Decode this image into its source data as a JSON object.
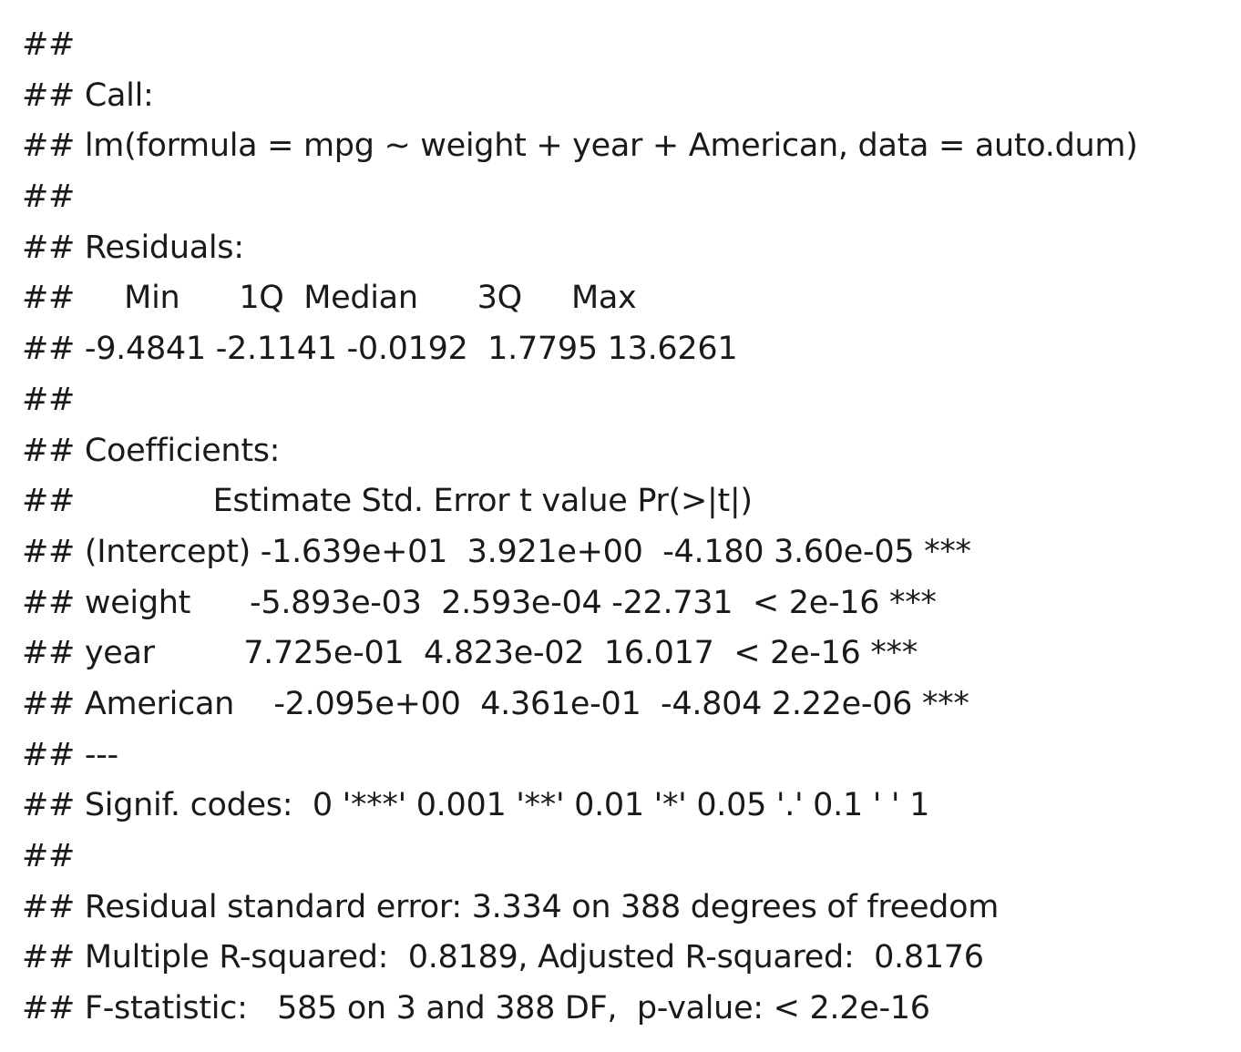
{
  "lines": [
    "##",
    "## Call:",
    "## lm(formula = mpg ~ weight + year + American, data = auto.dum)",
    "##",
    "## Residuals:",
    "##     Min      1Q  Median      3Q     Max",
    "## -9.4841 -2.1141 -0.0192  1.7795 13.6261",
    "##",
    "## Coefficients:",
    "##              Estimate Std. Error t value Pr(>|t|)",
    "## (Intercept) -1.639e+01  3.921e+00  -4.180 3.60e-05 ***",
    "## weight      -5.893e-03  2.593e-04 -22.731  < 2e-16 ***",
    "## year         7.725e-01  4.823e-02  16.017  < 2e-16 ***",
    "## American    -2.095e+00  4.361e-01  -4.804 2.22e-06 ***",
    "## ---",
    "## Signif. codes:  0 '***' 0.001 '**' 0.01 '*' 0.05 '.' 0.1 ' ' 1",
    "##",
    "## Residual standard error: 3.334 on 388 degrees of freedom",
    "## Multiple R-squared:  0.8189, Adjusted R-squared:  0.8176",
    "## F-statistic:   585 on 3 and 388 DF,  p-value: < 2.2e-16"
  ]
}
